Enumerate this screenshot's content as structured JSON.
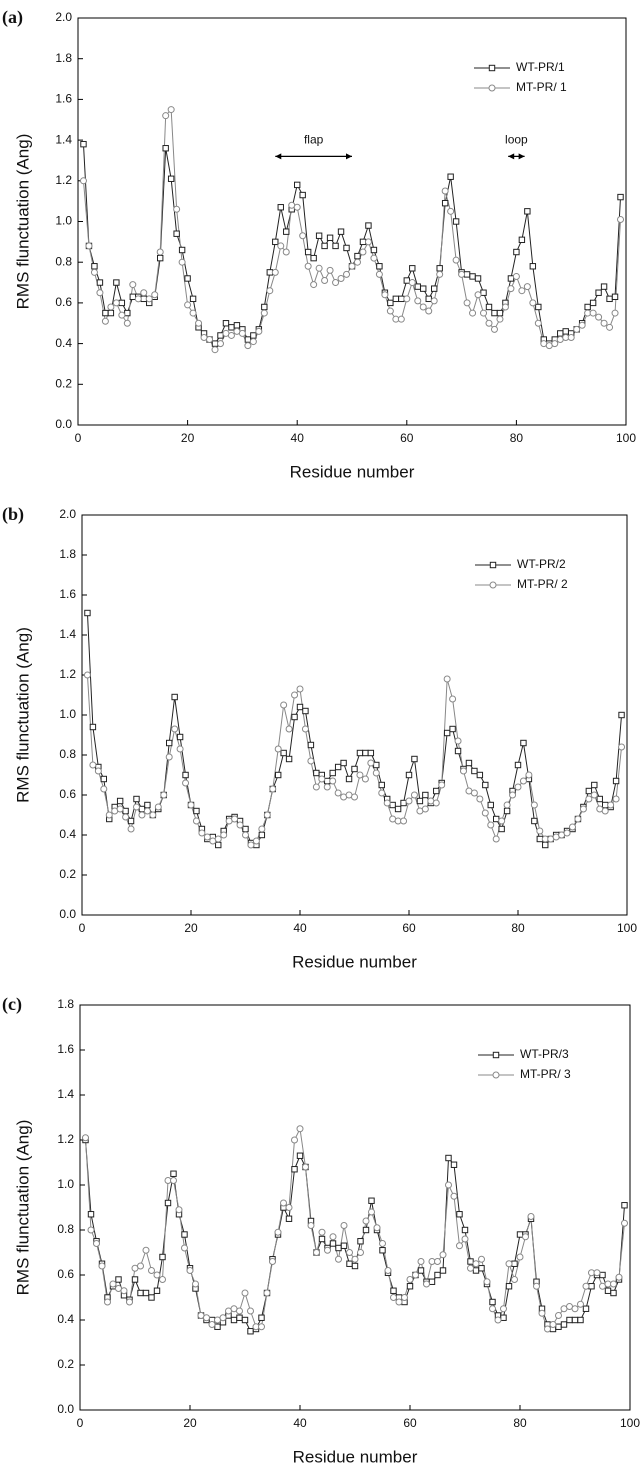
{
  "chart_data": [
    {
      "type": "line",
      "panel_label": "(a)",
      "xlabel": "Residue number",
      "ylabel": "RMS flunctuation (Ang)",
      "annotations": [
        "flap",
        "loop"
      ],
      "x": [
        1,
        2,
        3,
        4,
        5,
        6,
        7,
        8,
        9,
        10,
        11,
        12,
        13,
        14,
        15,
        16,
        17,
        18,
        19,
        20,
        21,
        22,
        23,
        24,
        25,
        26,
        27,
        28,
        29,
        30,
        31,
        32,
        33,
        34,
        35,
        36,
        37,
        38,
        39,
        40,
        41,
        42,
        43,
        44,
        45,
        46,
        47,
        48,
        49,
        50,
        51,
        52,
        53,
        54,
        55,
        56,
        57,
        58,
        59,
        60,
        61,
        62,
        63,
        64,
        65,
        66,
        67,
        68,
        69,
        70,
        71,
        72,
        73,
        74,
        75,
        76,
        77,
        78,
        79,
        80,
        81,
        82,
        83,
        84,
        85,
        86,
        87,
        88,
        89,
        90,
        91,
        92,
        93,
        94,
        95,
        96,
        97,
        98,
        99
      ],
      "series": [
        {
          "name": "WT-PR/1",
          "color": "#222222",
          "marker": "square",
          "values": [
            1.38,
            0.88,
            0.78,
            0.7,
            0.55,
            0.55,
            0.7,
            0.6,
            0.55,
            0.63,
            0.63,
            0.62,
            0.6,
            0.63,
            0.82,
            1.36,
            1.21,
            0.94,
            0.86,
            0.72,
            0.62,
            0.48,
            0.45,
            0.42,
            0.4,
            0.44,
            0.5,
            0.48,
            0.49,
            0.47,
            0.42,
            0.44,
            0.47,
            0.58,
            0.75,
            0.9,
            1.07,
            0.95,
            1.06,
            1.18,
            1.13,
            0.85,
            0.82,
            0.93,
            0.88,
            0.92,
            0.88,
            0.95,
            0.87,
            0.78,
            0.83,
            0.9,
            0.98,
            0.86,
            0.78,
            0.65,
            0.6,
            0.62,
            0.62,
            0.71,
            0.77,
            0.68,
            0.67,
            0.62,
            0.67,
            0.77,
            1.09,
            1.22,
            1.0,
            0.75,
            0.74,
            0.73,
            0.72,
            0.65,
            0.58,
            0.55,
            0.55,
            0.6,
            0.72,
            0.85,
            0.91,
            1.05,
            0.78,
            0.58,
            0.42,
            0.4,
            0.42,
            0.45,
            0.46,
            0.45,
            0.47,
            0.5,
            0.58,
            0.6,
            0.65,
            0.68,
            0.62,
            0.63,
            1.12
          ]
        },
        {
          "name": "MT-PR/ 1",
          "color": "#888888",
          "marker": "circle",
          "values": [
            1.2,
            0.88,
            0.75,
            0.65,
            0.51,
            0.58,
            0.6,
            0.54,
            0.5,
            0.69,
            0.62,
            0.65,
            0.62,
            0.64,
            0.85,
            1.52,
            1.55,
            1.06,
            0.8,
            0.59,
            0.55,
            0.5,
            0.43,
            0.42,
            0.37,
            0.4,
            0.45,
            0.44,
            0.46,
            0.45,
            0.39,
            0.41,
            0.46,
            0.55,
            0.66,
            0.75,
            0.88,
            0.85,
            1.08,
            1.07,
            0.93,
            0.78,
            0.69,
            0.77,
            0.71,
            0.76,
            0.7,
            0.72,
            0.74,
            0.78,
            0.8,
            0.85,
            0.9,
            0.82,
            0.74,
            0.64,
            0.56,
            0.52,
            0.52,
            0.62,
            0.7,
            0.61,
            0.58,
            0.56,
            0.61,
            0.74,
            1.15,
            1.05,
            0.81,
            0.74,
            0.6,
            0.55,
            0.64,
            0.55,
            0.5,
            0.47,
            0.52,
            0.58,
            0.67,
            0.73,
            0.66,
            0.68,
            0.6,
            0.5,
            0.4,
            0.39,
            0.4,
            0.42,
            0.43,
            0.43,
            0.47,
            0.49,
            0.55,
            0.55,
            0.53,
            0.5,
            0.48,
            0.55,
            1.01
          ]
        }
      ],
      "xlim": [
        0,
        100
      ],
      "xticks": [
        0,
        20,
        40,
        60,
        80,
        100
      ],
      "ylim": [
        0,
        2
      ],
      "yticks": [
        {
          "value": 0,
          "label": "0.0"
        },
        0.2,
        0.4,
        0.6,
        0.8,
        {
          "value": 1,
          "label": "1.0"
        },
        1.2,
        1.4,
        1.6,
        1.8,
        {
          "value": 2,
          "label": "2.0"
        }
      ],
      "legend": "upper right"
    },
    {
      "type": "line",
      "panel_label": "(b)",
      "xlabel": "Residue number",
      "ylabel": "RMS flunctuation (Ang)",
      "x": [
        1,
        2,
        3,
        4,
        5,
        6,
        7,
        8,
        9,
        10,
        11,
        12,
        13,
        14,
        15,
        16,
        17,
        18,
        19,
        20,
        21,
        22,
        23,
        24,
        25,
        26,
        27,
        28,
        29,
        30,
        31,
        32,
        33,
        34,
        35,
        36,
        37,
        38,
        39,
        40,
        41,
        42,
        43,
        44,
        45,
        46,
        47,
        48,
        49,
        50,
        51,
        52,
        53,
        54,
        55,
        56,
        57,
        58,
        59,
        60,
        61,
        62,
        63,
        64,
        65,
        66,
        67,
        68,
        69,
        70,
        71,
        72,
        73,
        74,
        75,
        76,
        77,
        78,
        79,
        80,
        81,
        82,
        83,
        84,
        85,
        86,
        87,
        88,
        89,
        90,
        91,
        92,
        93,
        94,
        95,
        96,
        97,
        98,
        99
      ],
      "series": [
        {
          "name": "WT-PR/2",
          "color": "#222222",
          "marker": "square",
          "values": [
            1.51,
            0.94,
            0.74,
            0.68,
            0.48,
            0.54,
            0.57,
            0.52,
            0.47,
            0.58,
            0.53,
            0.55,
            0.5,
            0.53,
            0.6,
            0.86,
            1.09,
            0.89,
            0.7,
            0.55,
            0.52,
            0.43,
            0.38,
            0.39,
            0.35,
            0.42,
            0.48,
            0.49,
            0.47,
            0.43,
            0.36,
            0.35,
            0.4,
            0.5,
            0.63,
            0.7,
            0.81,
            0.78,
            0.99,
            1.04,
            1.02,
            0.85,
            0.71,
            0.7,
            0.67,
            0.71,
            0.74,
            0.76,
            0.68,
            0.73,
            0.81,
            0.81,
            0.81,
            0.75,
            0.65,
            0.58,
            0.55,
            0.53,
            0.56,
            0.7,
            0.78,
            0.57,
            0.6,
            0.56,
            0.62,
            0.66,
            0.91,
            0.93,
            0.82,
            0.73,
            0.76,
            0.72,
            0.7,
            0.65,
            0.55,
            0.48,
            0.43,
            0.52,
            0.62,
            0.75,
            0.86,
            0.68,
            0.47,
            0.38,
            0.35,
            0.38,
            0.4,
            0.4,
            0.42,
            0.43,
            0.48,
            0.54,
            0.62,
            0.65,
            0.58,
            0.55,
            0.54,
            0.67,
            1.0
          ]
        },
        {
          "name": "MT-PR/ 2",
          "color": "#888888",
          "marker": "circle",
          "values": [
            1.2,
            0.75,
            0.72,
            0.63,
            0.5,
            0.52,
            0.53,
            0.49,
            0.43,
            0.54,
            0.5,
            0.52,
            0.5,
            0.54,
            0.6,
            0.79,
            0.93,
            0.83,
            0.66,
            0.55,
            0.47,
            0.41,
            0.39,
            0.37,
            0.38,
            0.4,
            0.47,
            0.48,
            0.45,
            0.4,
            0.35,
            0.37,
            0.43,
            0.5,
            0.63,
            0.83,
            1.05,
            0.93,
            1.1,
            1.13,
            0.93,
            0.77,
            0.64,
            0.68,
            0.64,
            0.67,
            0.61,
            0.59,
            0.6,
            0.59,
            0.7,
            0.68,
            0.76,
            0.71,
            0.61,
            0.56,
            0.48,
            0.47,
            0.47,
            0.57,
            0.6,
            0.52,
            0.53,
            0.57,
            0.56,
            0.65,
            1.18,
            1.08,
            0.87,
            0.72,
            0.62,
            0.61,
            0.58,
            0.51,
            0.45,
            0.38,
            0.47,
            0.55,
            0.6,
            0.64,
            0.67,
            0.7,
            0.55,
            0.42,
            0.38,
            0.38,
            0.39,
            0.4,
            0.41,
            0.44,
            0.48,
            0.53,
            0.58,
            0.6,
            0.53,
            0.52,
            0.55,
            0.58,
            0.84
          ]
        }
      ],
      "xlim": [
        0,
        100
      ],
      "xticks": [
        0,
        20,
        40,
        60,
        80,
        100
      ],
      "ylim": [
        0,
        2
      ],
      "yticks": [
        {
          "value": 0,
          "label": "0.0"
        },
        0.2,
        0.4,
        0.6,
        0.8,
        {
          "value": 1,
          "label": "1.0"
        },
        1.2,
        1.4,
        1.6,
        1.8,
        {
          "value": 2,
          "label": "2.0"
        }
      ],
      "legend": "upper right"
    },
    {
      "type": "line",
      "panel_label": "(c)",
      "xlabel": "Residue number",
      "ylabel": "RMS flunctuation (Ang)",
      "x": [
        1,
        2,
        3,
        4,
        5,
        6,
        7,
        8,
        9,
        10,
        11,
        12,
        13,
        14,
        15,
        16,
        17,
        18,
        19,
        20,
        21,
        22,
        23,
        24,
        25,
        26,
        27,
        28,
        29,
        30,
        31,
        32,
        33,
        34,
        35,
        36,
        37,
        38,
        39,
        40,
        41,
        42,
        43,
        44,
        45,
        46,
        47,
        48,
        49,
        50,
        51,
        52,
        53,
        54,
        55,
        56,
        57,
        58,
        59,
        60,
        61,
        62,
        63,
        64,
        65,
        66,
        67,
        68,
        69,
        70,
        71,
        72,
        73,
        74,
        75,
        76,
        77,
        78,
        79,
        80,
        81,
        82,
        83,
        84,
        85,
        86,
        87,
        88,
        89,
        90,
        91,
        92,
        93,
        94,
        95,
        96,
        97,
        98,
        99
      ],
      "series": [
        {
          "name": "WT-PR/3",
          "color": "#222222",
          "marker": "square",
          "values": [
            1.2,
            0.87,
            0.75,
            0.65,
            0.5,
            0.55,
            0.58,
            0.51,
            0.49,
            0.58,
            0.52,
            0.52,
            0.5,
            0.53,
            0.68,
            0.92,
            1.05,
            0.87,
            0.78,
            0.63,
            0.54,
            0.42,
            0.4,
            0.4,
            0.37,
            0.39,
            0.42,
            0.4,
            0.41,
            0.4,
            0.35,
            0.36,
            0.41,
            0.52,
            0.67,
            0.78,
            0.9,
            0.85,
            1.07,
            1.13,
            1.08,
            0.84,
            0.7,
            0.76,
            0.72,
            0.74,
            0.72,
            0.73,
            0.65,
            0.64,
            0.75,
            0.8,
            0.93,
            0.8,
            0.71,
            0.61,
            0.53,
            0.5,
            0.48,
            0.55,
            0.6,
            0.62,
            0.57,
            0.57,
            0.6,
            0.62,
            1.12,
            1.09,
            0.87,
            0.8,
            0.66,
            0.62,
            0.63,
            0.56,
            0.48,
            0.42,
            0.41,
            0.55,
            0.65,
            0.78,
            0.78,
            0.85,
            0.57,
            0.45,
            0.38,
            0.36,
            0.37,
            0.38,
            0.4,
            0.4,
            0.4,
            0.45,
            0.55,
            0.6,
            0.6,
            0.53,
            0.52,
            0.58,
            0.91
          ]
        },
        {
          "name": "MT-PR/ 3",
          "color": "#888888",
          "marker": "circle",
          "values": [
            1.21,
            0.8,
            0.74,
            0.64,
            0.48,
            0.56,
            0.54,
            0.53,
            0.48,
            0.63,
            0.64,
            0.71,
            0.62,
            0.6,
            0.58,
            1.02,
            1.02,
            0.89,
            0.72,
            0.62,
            0.56,
            0.42,
            0.41,
            0.38,
            0.4,
            0.41,
            0.44,
            0.45,
            0.44,
            0.52,
            0.44,
            0.37,
            0.37,
            0.52,
            0.66,
            0.79,
            0.92,
            0.9,
            1.2,
            1.25,
            1.08,
            0.82,
            0.7,
            0.79,
            0.71,
            0.77,
            0.67,
            0.82,
            0.7,
            0.67,
            0.7,
            0.84,
            0.88,
            0.81,
            0.74,
            0.62,
            0.5,
            0.48,
            0.5,
            0.58,
            0.6,
            0.66,
            0.56,
            0.66,
            0.66,
            0.69,
            1.0,
            0.95,
            0.73,
            0.76,
            0.63,
            0.65,
            0.67,
            0.57,
            0.45,
            0.4,
            0.45,
            0.65,
            0.58,
            0.68,
            0.77,
            0.86,
            0.55,
            0.43,
            0.36,
            0.38,
            0.42,
            0.45,
            0.46,
            0.45,
            0.47,
            0.55,
            0.61,
            0.61,
            0.55,
            0.56,
            0.56,
            0.59,
            0.83
          ]
        }
      ],
      "xlim": [
        0,
        100
      ],
      "xticks": [
        0,
        20,
        40,
        60,
        80,
        100
      ],
      "ylim": [
        0,
        1.8
      ],
      "yticks": [
        {
          "value": 0,
          "label": "0.0"
        },
        0.2,
        0.4,
        0.6,
        0.8,
        {
          "value": 1,
          "label": "1.0"
        },
        1.2,
        1.4,
        1.6,
        1.8
      ],
      "legend": "upper right"
    }
  ]
}
